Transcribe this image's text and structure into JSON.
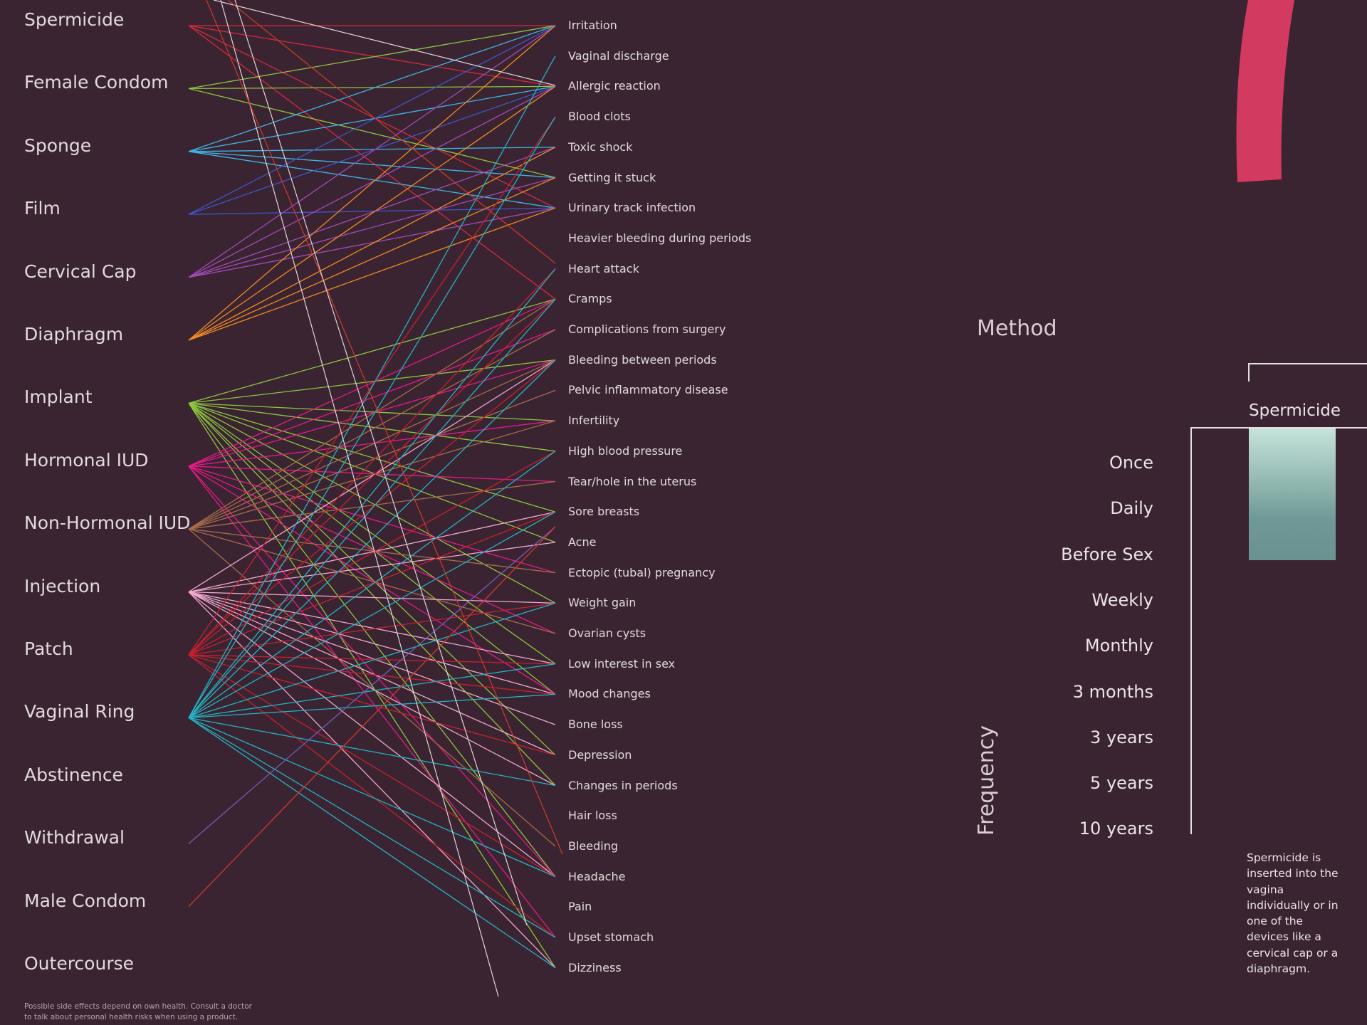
{
  "methods": [
    {
      "label": "Spermicide",
      "color": "#d42a3f"
    },
    {
      "label": "Female Condom",
      "color": "#8cc63f"
    },
    {
      "label": "Sponge",
      "color": "#3fb4e6"
    },
    {
      "label": "Film",
      "color": "#3f55c8"
    },
    {
      "label": "Cervical Cap",
      "color": "#a34bb8"
    },
    {
      "label": "Diaphragm",
      "color": "#f08a24"
    },
    {
      "label": "Implant",
      "color": "#8cc63f"
    },
    {
      "label": "Hormonal IUD",
      "color": "#e6198a"
    },
    {
      "label": "Non-Hormonal IUD",
      "color": "#a66c4a"
    },
    {
      "label": "Injection",
      "color": "#f0a8d0"
    },
    {
      "label": "Patch",
      "color": "#c8202e"
    },
    {
      "label": "Vaginal Ring",
      "color": "#23b3c6"
    },
    {
      "label": "Abstinence",
      "color": "#8a5ad0"
    },
    {
      "label": "Withdrawal",
      "color": "#7a5ab8"
    },
    {
      "label": "Male Condom",
      "color": "#d23a2a"
    },
    {
      "label": "Outercourse",
      "color": "#d0c0c8"
    }
  ],
  "side_effects": [
    "Irritation",
    "Vaginal discharge",
    "Allergic reaction",
    "Blood clots",
    "Toxic shock",
    "Getting it stuck",
    "Urinary track infection",
    "Heavier bleeding during periods",
    "Heart attack",
    "Cramps",
    "Complications from surgery",
    "Bleeding between periods",
    "Pelvic inflammatory disease",
    "Infertility",
    "High blood pressure",
    "Tear/hole in the uterus",
    "Sore breasts",
    "Acne",
    "Ectopic (tubal) pregnancy",
    "Weight gain",
    "Ovarian cysts",
    "Low interest in sex",
    "Mood changes",
    "Bone loss",
    "Depression",
    "Changes in periods",
    "Hair loss",
    "Bleeding",
    "Headache",
    "Pain",
    "Upset stomach",
    "Dizziness"
  ],
  "links": [
    {
      "method": 0,
      "effects": [
        0,
        2,
        6,
        9
      ]
    },
    {
      "method": 1,
      "effects": [
        0,
        2,
        5
      ]
    },
    {
      "method": 2,
      "effects": [
        0,
        2,
        4,
        5,
        6
      ]
    },
    {
      "method": 3,
      "effects": [
        0,
        2,
        6
      ]
    },
    {
      "method": 4,
      "effects": [
        0,
        2,
        4,
        5,
        6
      ]
    },
    {
      "method": 5,
      "effects": [
        0,
        2,
        4,
        5,
        6
      ]
    },
    {
      "method": 6,
      "effects": [
        9,
        11,
        13,
        14,
        16,
        17,
        19,
        21,
        22,
        24,
        25,
        28,
        31
      ]
    },
    {
      "method": 7,
      "effects": [
        9,
        10,
        11,
        13,
        15,
        18,
        20,
        22,
        28,
        30
      ]
    },
    {
      "method": 8,
      "effects": [
        9,
        10,
        11,
        12,
        13,
        15,
        18,
        20,
        27
      ]
    },
    {
      "method": 9,
      "effects": [
        11,
        16,
        17,
        19,
        21,
        22,
        23,
        24,
        25,
        28,
        31
      ]
    },
    {
      "method": 10,
      "effects": [
        3,
        8,
        9,
        11,
        14,
        16,
        19,
        21,
        22,
        24,
        28,
        30
      ]
    },
    {
      "method": 11,
      "effects": [
        1,
        3,
        8,
        9,
        11,
        14,
        16,
        19,
        21,
        22,
        25,
        28,
        30,
        31
      ]
    },
    {
      "method": 13,
      "effects": [
        -1
      ]
    },
    {
      "method": 14,
      "effects": [
        -1
      ]
    }
  ],
  "footnote": "Possible side effects depend on own health. Consult a doctor to talk about personal health risks when using a product.",
  "panel": {
    "method_title": "Method",
    "frequency_title": "Frequency",
    "selected_method": "Spermicide",
    "description": "Spermicide is inserted into the vagina individually or in one of the devices like a cervical cap or a diaphragm.",
    "frequencies": [
      "Once",
      "Daily",
      "Before Sex",
      "Weekly",
      "Monthly",
      "3 months",
      "3 years",
      "5 years",
      "10 years"
    ],
    "selected_frequency_range": [
      "Once",
      "Before Sex"
    ],
    "arc_color": "#d33a5f"
  }
}
